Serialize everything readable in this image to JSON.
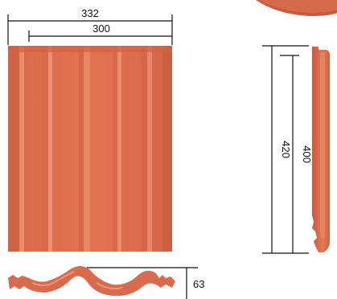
{
  "dimensions": {
    "width_outer": "332",
    "width_inner": "300",
    "length_outer": "420",
    "length_inner": "400",
    "height": "63"
  },
  "colors": {
    "tile_base": "#e0704f",
    "tile_dark": "#c95a3c",
    "tile_light": "#ea8a68",
    "line": "#111111"
  }
}
